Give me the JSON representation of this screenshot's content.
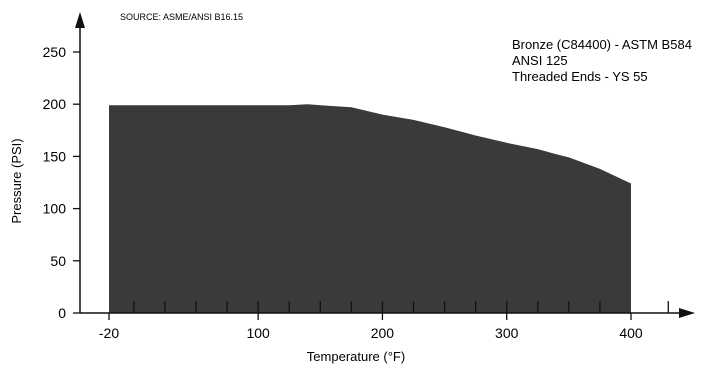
{
  "chart_data": {
    "type": "area",
    "source_note": "SOURCE: ASME/ANSI B16.15",
    "annotations": [
      "Bronze (C84400) - ASTM B584",
      "ANSI 125",
      "Threaded Ends - YS 55"
    ],
    "xlabel": "Temperature (°F)",
    "ylabel": "Pressure (PSI)",
    "xlim": [
      -20,
      440
    ],
    "ylim": [
      0,
      270
    ],
    "x_tick_labels": [
      "-20",
      "100",
      "200",
      "300",
      "400"
    ],
    "x_ticks": [
      -20,
      100,
      200,
      300,
      400
    ],
    "y_tick_labels": [
      "0",
      "50",
      "100",
      "150",
      "200",
      "250"
    ],
    "y_ticks": [
      0,
      50,
      100,
      150,
      200,
      250
    ],
    "minor_x_ticks": [
      0,
      25,
      50,
      75,
      100,
      125,
      150,
      175,
      200,
      225,
      250,
      275,
      300,
      325,
      350,
      375
    ],
    "area_color": "#3a3a3a",
    "series": [
      {
        "x": [
          -20,
          0,
          25,
          50,
          75,
          100,
          125,
          140,
          150,
          175,
          200,
          225,
          250,
          275,
          300,
          325,
          340,
          350,
          375,
          400
        ],
        "values": [
          199,
          199,
          199,
          199,
          199,
          199,
          199,
          200,
          199,
          197,
          190,
          185,
          178,
          170,
          163,
          157,
          152,
          149,
          138,
          124
        ]
      }
    ]
  }
}
